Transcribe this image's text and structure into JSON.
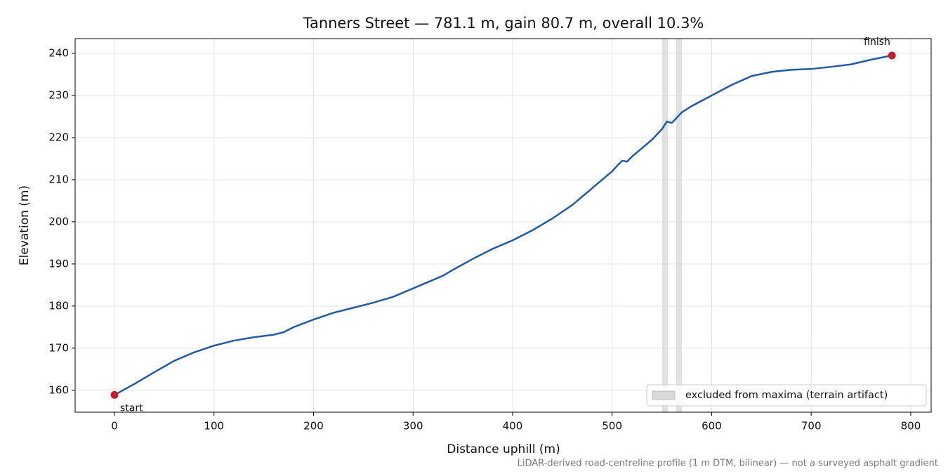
{
  "chart_data": {
    "type": "line",
    "title": "Tanners Street — 781.1 m, gain 80.7 m, overall 10.3%",
    "xlabel": "Distance uphill (m)",
    "ylabel": "Elevation (m)",
    "note": "LiDAR-derived road-centreline profile (1 m DTM, bilinear) — not a surveyed asphalt gradient",
    "x": [
      0,
      20,
      40,
      60,
      80,
      100,
      120,
      140,
      160,
      170,
      180,
      200,
      220,
      240,
      260,
      280,
      300,
      320,
      330,
      340,
      360,
      380,
      400,
      420,
      440,
      460,
      480,
      500,
      505,
      510,
      515,
      520,
      530,
      540,
      550,
      555,
      560,
      570,
      580,
      600,
      620,
      640,
      660,
      680,
      700,
      720,
      740,
      760,
      781.1
    ],
    "values": [
      158.9,
      161.5,
      164.3,
      167,
      169,
      170.6,
      171.8,
      172.6,
      173.2,
      173.8,
      175,
      176.8,
      178.4,
      179.6,
      180.8,
      182.2,
      184.2,
      186.2,
      187.2,
      188.6,
      191.2,
      193.6,
      195.6,
      198,
      200.8,
      204,
      208,
      212,
      213.3,
      214.5,
      214.3,
      215.5,
      217.5,
      219.5,
      222,
      223.8,
      223.5,
      226,
      227.5,
      230,
      232.5,
      234.6,
      235.6,
      236.1,
      236.3,
      236.8,
      237.4,
      238.5,
      239.5
    ],
    "color": "#1f5aa8",
    "markers": [
      {
        "label": "start",
        "x": 0,
        "y": 158.9
      },
      {
        "label": "finish",
        "x": 781.1,
        "y": 239.5
      }
    ],
    "marker_color": "#c41e2a",
    "spans": {
      "label": "excluded from maxima (terrain artifact)",
      "color": "#d9d9d9",
      "ranges": [
        [
          550.3,
          556
        ],
        [
          564.4,
          570
        ]
      ]
    },
    "xlim": [
      -39.5,
      820.5
    ],
    "ylim": [
      154.8,
      243.5
    ],
    "xticks": [
      0,
      100,
      200,
      300,
      400,
      500,
      600,
      700,
      800
    ],
    "yticks": [
      160,
      170,
      180,
      190,
      200,
      210,
      220,
      230,
      240
    ],
    "grid": true,
    "legend": "lower right"
  }
}
